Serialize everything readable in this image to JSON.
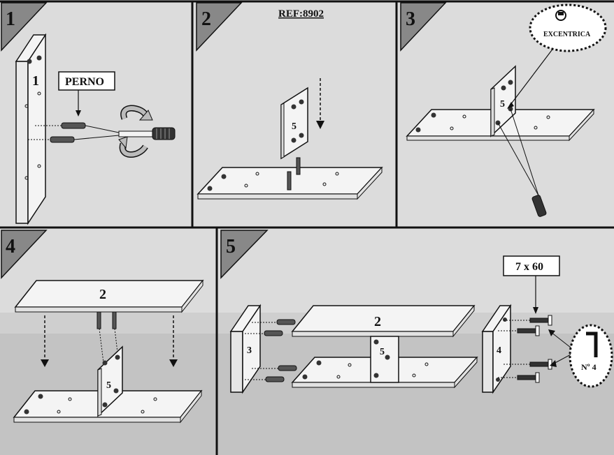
{
  "ref": "REF:8902",
  "steps": [
    {
      "number": "1",
      "callout": "PERNO",
      "panel_label": "1"
    },
    {
      "number": "2",
      "panel_label": "5"
    },
    {
      "number": "3",
      "callout": "EXCENTRICA",
      "panel_label": "5"
    },
    {
      "number": "4",
      "top_label": "2",
      "panel_label": "5"
    },
    {
      "number": "5",
      "top_label": "2",
      "left_label": "3",
      "center_label": "5",
      "right_label": "4",
      "screw_label": "7 x 60",
      "wrench_label": "Nº 4"
    }
  ],
  "colors": {
    "panel_bg": "#dcdcdc",
    "lower_band": "#c6c6c6",
    "bottom_band": "#b4b4b4",
    "ink": "#111111",
    "board": "#f4f4f4"
  }
}
